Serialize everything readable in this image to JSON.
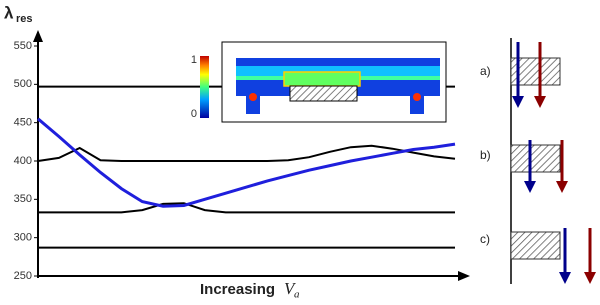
{
  "chart_data": {
    "type": "line",
    "ylabel": "λ",
    "ylabel_sub": "res",
    "xlabel": "Increasing",
    "xlabel_var": "V",
    "xlabel_sub": "a",
    "ylim": [
      250,
      550
    ],
    "yticks": [
      250,
      300,
      350,
      400,
      450,
      500,
      550
    ],
    "categories": [
      null,
      null,
      null,
      null,
      null,
      null,
      null,
      null,
      null,
      null,
      null,
      null,
      null,
      null,
      null,
      null,
      null,
      null,
      null,
      null,
      null
    ],
    "series": [
      {
        "color": "#000000",
        "values": [
          497,
          497,
          497,
          497,
          497,
          497,
          497,
          497,
          497,
          497,
          497,
          497,
          497,
          497,
          497,
          497,
          497,
          497,
          497,
          497,
          497
        ]
      },
      {
        "color": "#000000",
        "values": [
          287,
          287,
          287,
          287,
          287,
          287,
          287,
          287,
          287,
          287,
          287,
          287,
          287,
          287,
          287,
          287,
          287,
          287,
          287,
          287,
          287
        ]
      },
      {
        "color": "#000000",
        "values": [
          400,
          404,
          417,
          401,
          400,
          400,
          400,
          400,
          400,
          400,
          400,
          400,
          401,
          405,
          412,
          418,
          420,
          416,
          411,
          406,
          403
        ]
      },
      {
        "color": "#000000",
        "values": [
          333,
          333,
          333,
          333,
          333,
          336,
          344,
          345,
          336,
          333,
          333,
          333,
          333,
          333,
          333,
          333,
          333,
          333,
          333,
          333,
          333
        ]
      },
      {
        "color": "#1f1fdc",
        "values": [
          455,
          432,
          408,
          385,
          364,
          347,
          341,
          342,
          350,
          358,
          366,
          374,
          381,
          388,
          394,
          400,
          405,
          410,
          415,
          418,
          422
        ]
      }
    ],
    "colorbar_ticks": [
      1,
      0
    ]
  },
  "side_diagram": {
    "labels": [
      "a)",
      "b)",
      "c)"
    ]
  }
}
